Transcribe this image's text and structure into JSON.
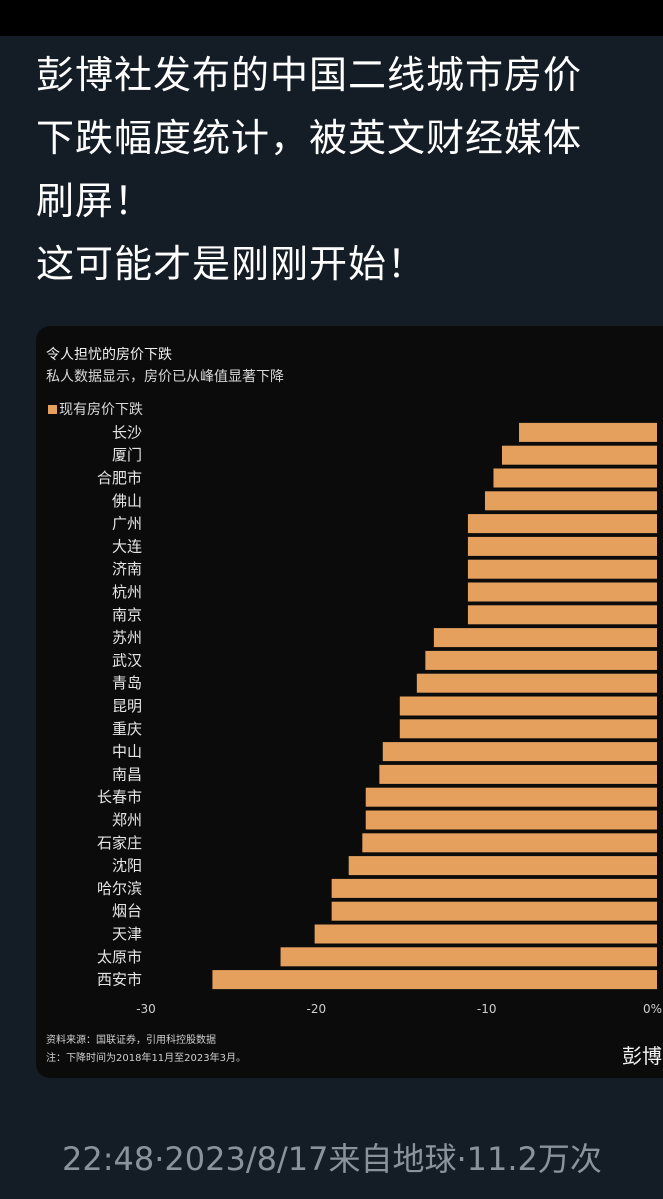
{
  "post": {
    "lines": [
      "彭博社发布的中国二线城市房价",
      "下跌幅度统计，被英文财经媒体",
      "刷屏！",
      "这可能才是刚刚开始！"
    ],
    "footer": "22:48·2023/8/17来自地球·11.2万次"
  },
  "chart_data": {
    "type": "bar",
    "orientation": "horizontal",
    "title": "令人担忧的房价下跌",
    "subtitle": "私人数据显示，房价已从峰值显著下降",
    "legend": "现有房价下跌",
    "categories": [
      "长沙",
      "厦门",
      "合肥市",
      "佛山",
      "广州",
      "大连",
      "济南",
      "杭州",
      "南京",
      "苏州",
      "武汉",
      "青岛",
      "昆明",
      "重庆",
      "中山",
      "南昌",
      "长春市",
      "郑州",
      "石家庄",
      "沈阳",
      "哈尔滨",
      "烟台",
      "天津",
      "太原市",
      "西安市"
    ],
    "values": [
      -8.1,
      -9.1,
      -9.6,
      -10.1,
      -11.1,
      -11.1,
      -11.1,
      -11.1,
      -11.1,
      -13.1,
      -13.6,
      -14.1,
      -15.1,
      -15.1,
      -16.1,
      -16.3,
      -17.1,
      -17.1,
      -17.3,
      -18.1,
      -19.1,
      -19.1,
      -20.1,
      -22.1,
      -26.1
    ],
    "xlim": [
      -30,
      0
    ],
    "xticks": [
      "-30",
      "-20",
      "-10",
      "0%"
    ],
    "bar_color": "#e5a05e",
    "source": "资料来源：国联证券，引用科控股数据",
    "note": "注：下降时间为2018年11月至2023年3月。",
    "brand": "彭博"
  }
}
